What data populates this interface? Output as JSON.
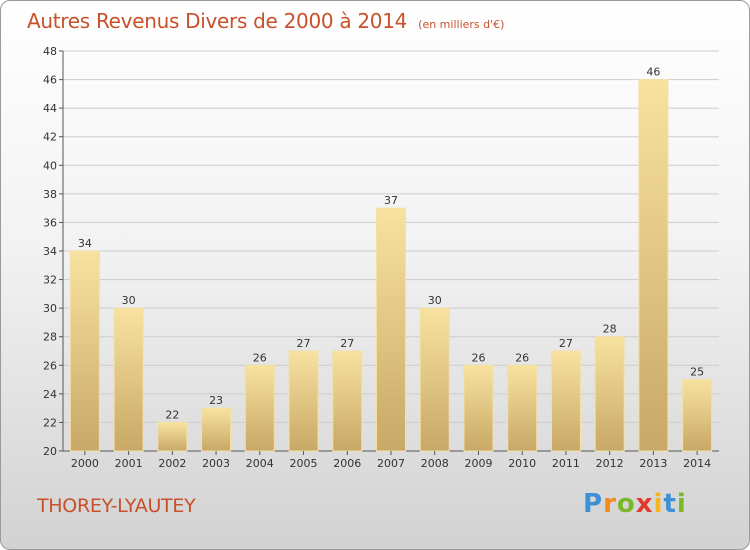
{
  "chart_data": {
    "type": "bar",
    "title": "Autres Revenus Divers de 2000 à 2014",
    "subtitle": "(en milliers d'€)",
    "categories": [
      "2000",
      "2001",
      "2002",
      "2003",
      "2004",
      "2005",
      "2006",
      "2007",
      "2008",
      "2009",
      "2010",
      "2011",
      "2012",
      "2013",
      "2014"
    ],
    "values": [
      34,
      30,
      22,
      23,
      26,
      27,
      27,
      37,
      30,
      26,
      26,
      27,
      28,
      46,
      25
    ],
    "ylim": [
      20,
      48
    ],
    "yticks": [
      20,
      22,
      24,
      26,
      28,
      30,
      32,
      34,
      36,
      38,
      40,
      42,
      44,
      46,
      48
    ],
    "grid": true,
    "colors": {
      "bar_light": "#f8e2a0",
      "bar_dark": "#c8a866",
      "bar_edge": "#f3e0a6",
      "grid": "#cccccc",
      "title": "#c8502a"
    }
  },
  "location": "THOREY-LYAUTEY",
  "logo": {
    "letters": [
      "P",
      "r",
      "o",
      "x",
      "i",
      "t",
      "i"
    ],
    "colors": [
      "#3d8fd6",
      "#f28a1c",
      "#7ab82a",
      "#e23a2a",
      "#f2b51c",
      "#3d8fd6",
      "#7ab82a"
    ]
  }
}
